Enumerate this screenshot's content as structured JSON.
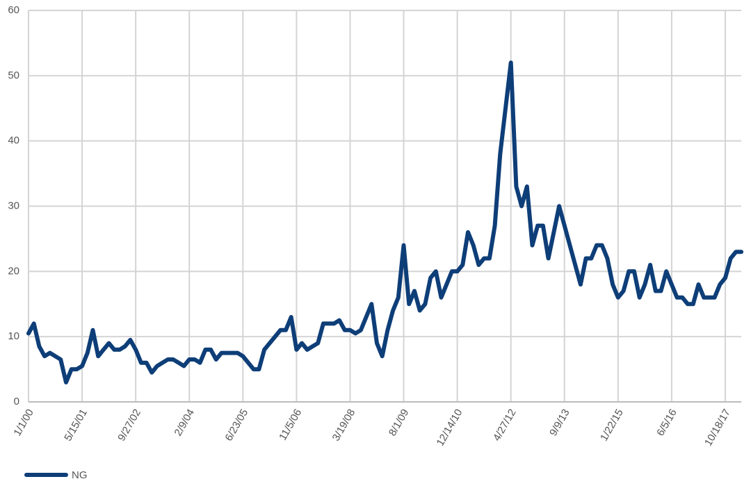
{
  "chart_data": {
    "type": "line",
    "categories": [
      "1/1/00",
      null,
      null,
      null,
      null,
      null,
      null,
      null,
      null,
      null,
      "5/15/01",
      null,
      null,
      null,
      null,
      null,
      null,
      null,
      null,
      null,
      "9/27/02",
      null,
      null,
      null,
      null,
      null,
      null,
      null,
      null,
      null,
      "2/9/04",
      null,
      null,
      null,
      null,
      null,
      null,
      null,
      null,
      null,
      "6/23/05",
      null,
      null,
      null,
      null,
      null,
      null,
      null,
      null,
      null,
      "11/5/06",
      null,
      null,
      null,
      null,
      null,
      null,
      null,
      null,
      null,
      "3/19/08",
      null,
      null,
      null,
      null,
      null,
      null,
      null,
      null,
      null,
      "8/1/09",
      null,
      null,
      null,
      null,
      null,
      null,
      null,
      null,
      null,
      "12/14/10",
      null,
      null,
      null,
      null,
      null,
      null,
      null,
      null,
      null,
      "4/27/12",
      null,
      null,
      null,
      null,
      null,
      null,
      null,
      null,
      null,
      "9/9/13",
      null,
      null,
      null,
      null,
      null,
      null,
      null,
      null,
      null,
      "1/22/15",
      null,
      null,
      null,
      null,
      null,
      null,
      null,
      null,
      null,
      "6/5/16",
      null,
      null,
      null,
      null,
      null,
      null,
      null,
      null,
      null,
      "10/18/17",
      null,
      null,
      null
    ],
    "series": [
      {
        "name": "NG",
        "color": "#0e3e78",
        "values": [
          10.5,
          12,
          8.5,
          7,
          7.5,
          7,
          6.5,
          3,
          5,
          5,
          5.5,
          7.5,
          11,
          7,
          8,
          9,
          8,
          8,
          8.5,
          9.5,
          8,
          6,
          6,
          4.5,
          5.5,
          6,
          6.5,
          6.5,
          6,
          5.5,
          6.5,
          6.5,
          6,
          8,
          8,
          6.5,
          7.5,
          7.5,
          7.5,
          7.5,
          7,
          6,
          5,
          5,
          8,
          9,
          10,
          11,
          11,
          13,
          8,
          9,
          8,
          8.5,
          9,
          12,
          12,
          12,
          12.5,
          11,
          11,
          10.5,
          11,
          13,
          15,
          9,
          7,
          11,
          14,
          16,
          24,
          15,
          17,
          14,
          15,
          19,
          20,
          16,
          18,
          20,
          20,
          21,
          26,
          24,
          21,
          22,
          22,
          27,
          38,
          45,
          52,
          33,
          30,
          33,
          24,
          27,
          27,
          22,
          26,
          30,
          27,
          24,
          21,
          18,
          22,
          22,
          24,
          24,
          22,
          18,
          16,
          17,
          20,
          20,
          16,
          18,
          21,
          17,
          17,
          20,
          18,
          16,
          16,
          15,
          15,
          18,
          16,
          16,
          16,
          18,
          19,
          22,
          23,
          23
        ]
      }
    ],
    "ylim": [
      0,
      60
    ],
    "yticks": [
      0,
      10,
      20,
      30,
      40,
      50,
      60
    ],
    "grid": true
  }
}
